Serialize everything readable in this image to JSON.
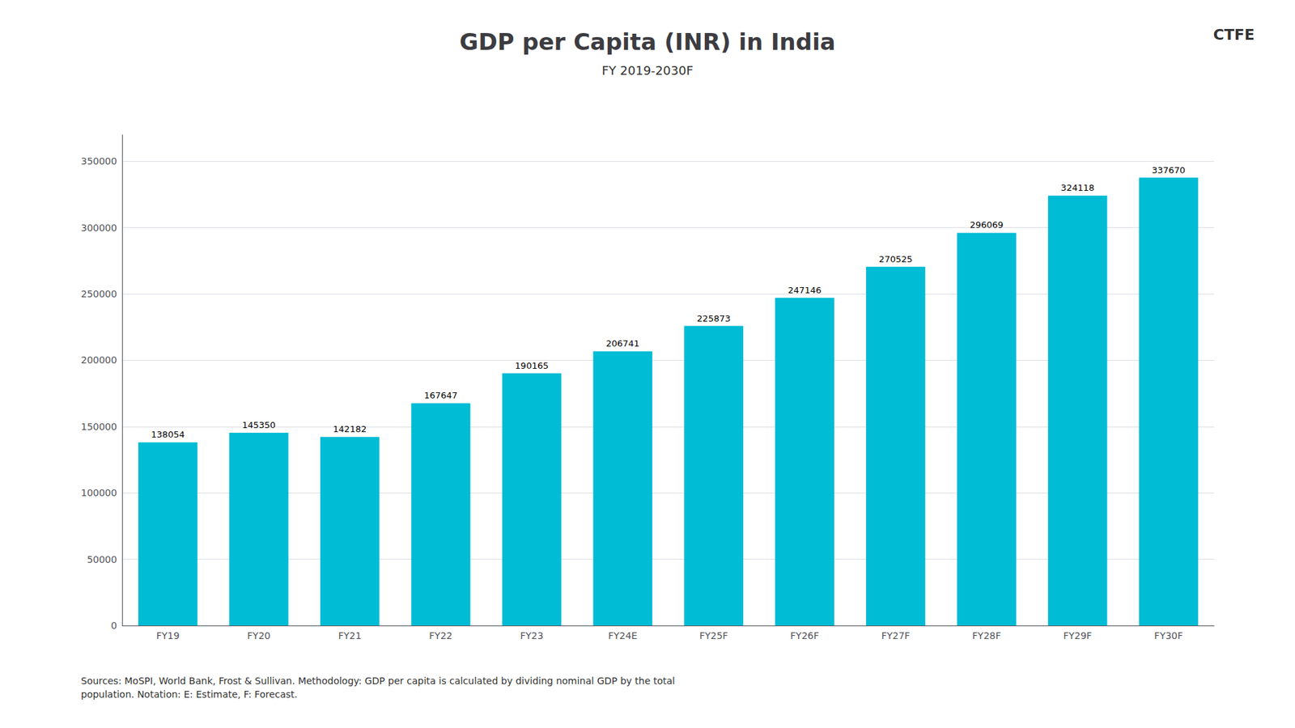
{
  "chart_data": {
    "type": "bar",
    "title": "GDP per Capita (INR) in India",
    "subtitle": "FY 2019-2030F",
    "categories": [
      "FY19",
      "FY20",
      "FY21",
      "FY22",
      "FY23",
      "FY24E",
      "FY25F",
      "FY26F",
      "FY27F",
      "FY28F",
      "FY29F",
      "FY30F"
    ],
    "values": [
      138054,
      145350,
      142182,
      167647,
      190165,
      206741,
      225873,
      247146,
      270525,
      296069,
      324118,
      337670
    ],
    "color": "#00BCD4",
    "ylim": [
      0,
      370000
    ],
    "yticks": [
      0,
      50000,
      100000,
      150000,
      200000,
      250000,
      300000,
      350000
    ],
    "grid": true,
    "data_labels": true,
    "annotations": [
      "Sources: MoSPI, World Bank, Frost & Sullivan. Methodology: GDP per capita is calculated by dividing nominal GDP by the total\npopulation. Notation: E: Estimate, F: Forecast.",
      "CTFE"
    ]
  }
}
